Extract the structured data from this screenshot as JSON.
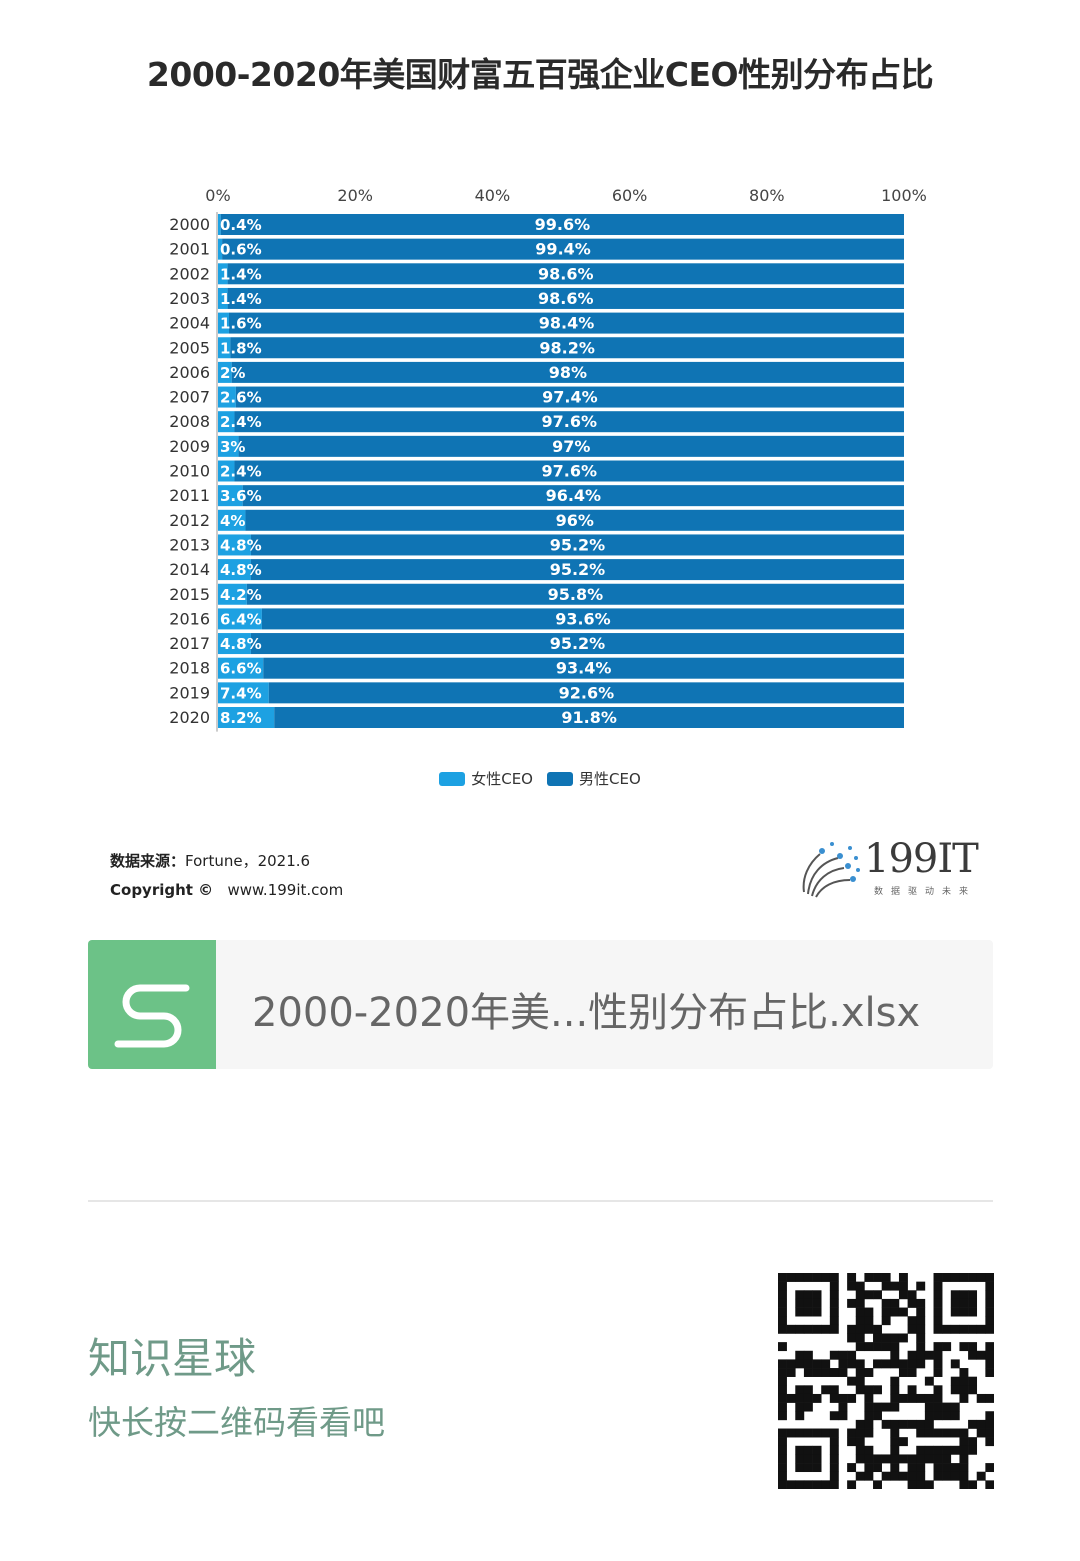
{
  "chart_data": {
    "type": "bar",
    "orientation": "horizontal",
    "stacked": true,
    "title": "2000-2020年美国财富五百强企业CEO性别分布占比",
    "categories": [
      "2000",
      "2001",
      "2002",
      "2003",
      "2004",
      "2005",
      "2006",
      "2007",
      "2008",
      "2009",
      "2010",
      "2011",
      "2012",
      "2013",
      "2014",
      "2015",
      "2016",
      "2017",
      "2018",
      "2019",
      "2020"
    ],
    "series": [
      {
        "name": "女性CEO",
        "color": "#1da1e2",
        "values": [
          0.4,
          0.6,
          1.4,
          1.4,
          1.6,
          1.8,
          2,
          2.6,
          2.4,
          3,
          2.4,
          3.6,
          4,
          4.8,
          4.8,
          4.2,
          6.4,
          4.8,
          6.6,
          7.4,
          8.2
        ],
        "labels": [
          "0.4%",
          "0.6%",
          "1.4%",
          "1.4%",
          "1.6%",
          "1.8%",
          "2%",
          "2.6%",
          "2.4%",
          "3%",
          "2.4%",
          "3.6%",
          "4%",
          "4.8%",
          "4.8%",
          "4.2%",
          "6.4%",
          "4.8%",
          "6.6%",
          "7.4%",
          "8.2%"
        ]
      },
      {
        "name": "男性CEO",
        "color": "#0f74b4",
        "values": [
          99.6,
          99.4,
          98.6,
          98.6,
          98.4,
          98.2,
          98,
          97.4,
          97.6,
          97,
          97.6,
          96.4,
          96,
          95.2,
          95.2,
          95.8,
          93.6,
          95.2,
          93.4,
          92.6,
          91.8
        ],
        "labels": [
          "99.6%",
          "99.4%",
          "98.6%",
          "98.6%",
          "98.4%",
          "98.2%",
          "98%",
          "97.4%",
          "97.6%",
          "97%",
          "97.6%",
          "96.4%",
          "96%",
          "95.2%",
          "95.2%",
          "95.8%",
          "93.6%",
          "95.2%",
          "93.4%",
          "92.6%",
          "91.8%"
        ]
      }
    ],
    "xlim": [
      0,
      100
    ],
    "xticks": [
      "0%",
      "20%",
      "40%",
      "60%",
      "80%",
      "100%"
    ],
    "xlabel": "",
    "ylabel": "",
    "legend_position": "bottom"
  },
  "source": {
    "label": "数据来源：",
    "text": "Fortune，2021.6"
  },
  "copyright": {
    "label": "Copyright ©",
    "url": "www.199it.com"
  },
  "logo": {
    "text": "199IT",
    "tagline": "数据驱动未来"
  },
  "file": {
    "icon_letter": "S",
    "name": "2000-2020年美...性别分布占比.xlsx"
  },
  "footer": {
    "title": "知识星球",
    "hint": "快长按二维码看看吧"
  }
}
